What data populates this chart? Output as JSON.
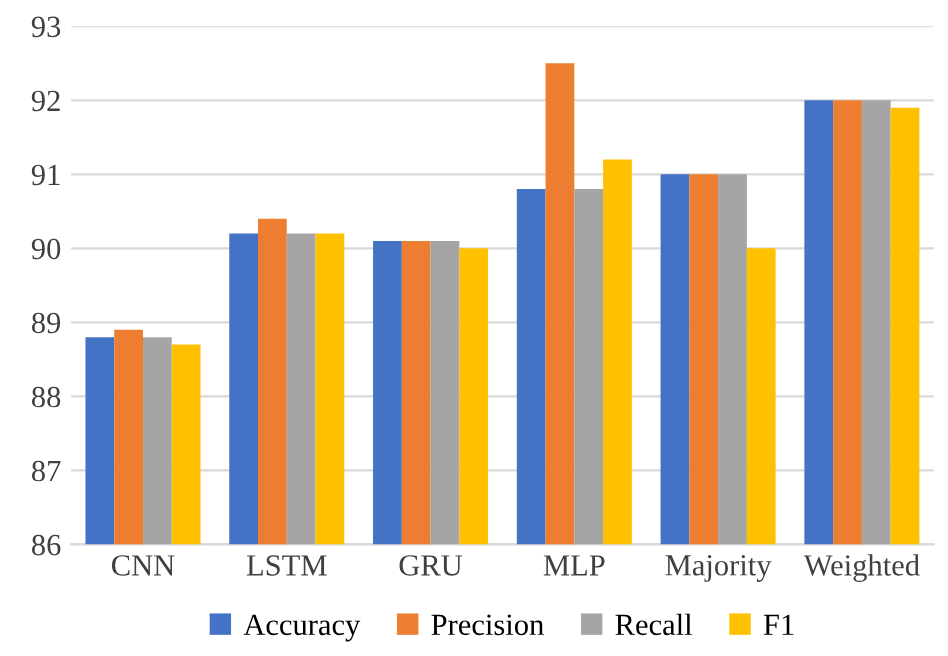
{
  "chart_data": {
    "type": "bar",
    "categories": [
      "CNN",
      "LSTM",
      "GRU",
      "MLP",
      "Majority",
      "Weighted"
    ],
    "series": [
      {
        "name": "Accuracy",
        "color": "#4472c4",
        "values": [
          88.8,
          90.2,
          90.1,
          90.8,
          91.0,
          92.0
        ]
      },
      {
        "name": "Precision",
        "color": "#ed7d31",
        "values": [
          88.9,
          90.4,
          90.1,
          92.5,
          91.0,
          92.0
        ]
      },
      {
        "name": "Recall",
        "color": "#a5a5a5",
        "values": [
          88.8,
          90.2,
          90.1,
          90.8,
          91.0,
          92.0
        ]
      },
      {
        "name": "F1",
        "color": "#ffc000",
        "values": [
          88.7,
          90.2,
          90.0,
          91.2,
          90.0,
          91.9
        ]
      }
    ],
    "ylim": [
      86,
      93
    ],
    "yticks": [
      86,
      87,
      88,
      89,
      90,
      91,
      92,
      93
    ],
    "grid": "y",
    "legend": "bottom"
  }
}
